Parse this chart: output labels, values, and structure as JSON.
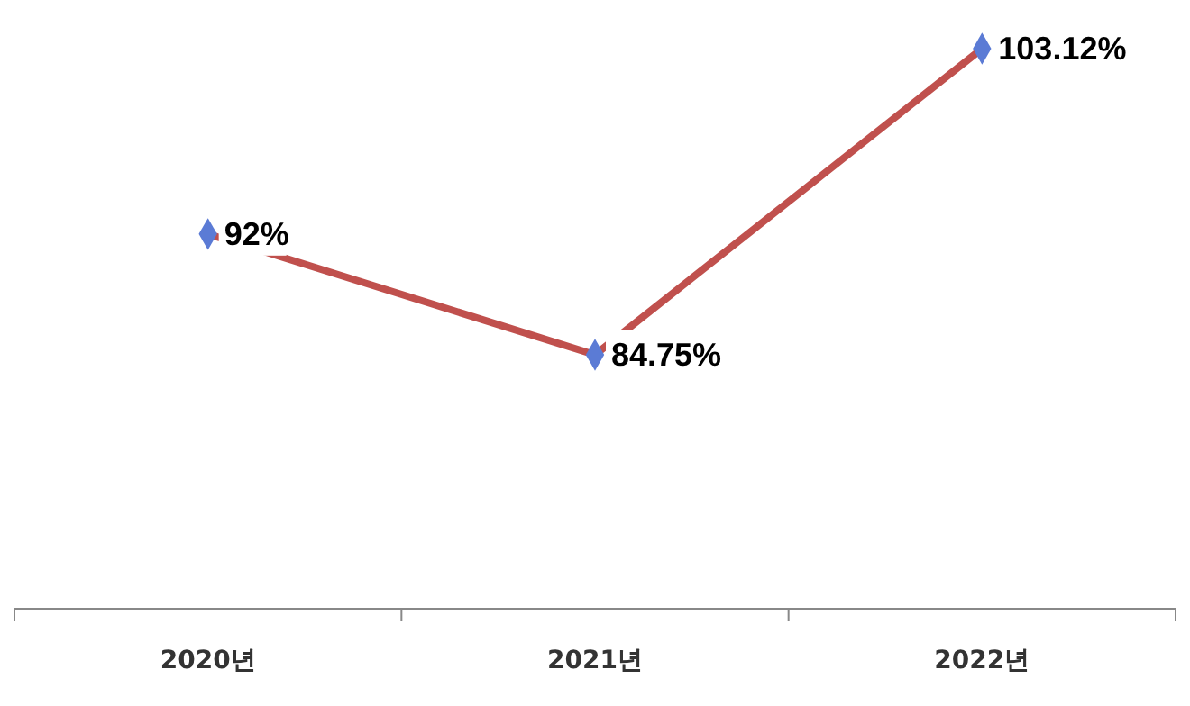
{
  "chart_data": {
    "type": "line",
    "categories": [
      "2020년",
      "2021년",
      "2022년"
    ],
    "series": [
      {
        "color": "#c0504d",
        "values": [
          92,
          84.75,
          103.12
        ],
        "value_labels": [
          "92%",
          "84.75%",
          "103.12%"
        ]
      }
    ],
    "marker": "diamond"
  }
}
